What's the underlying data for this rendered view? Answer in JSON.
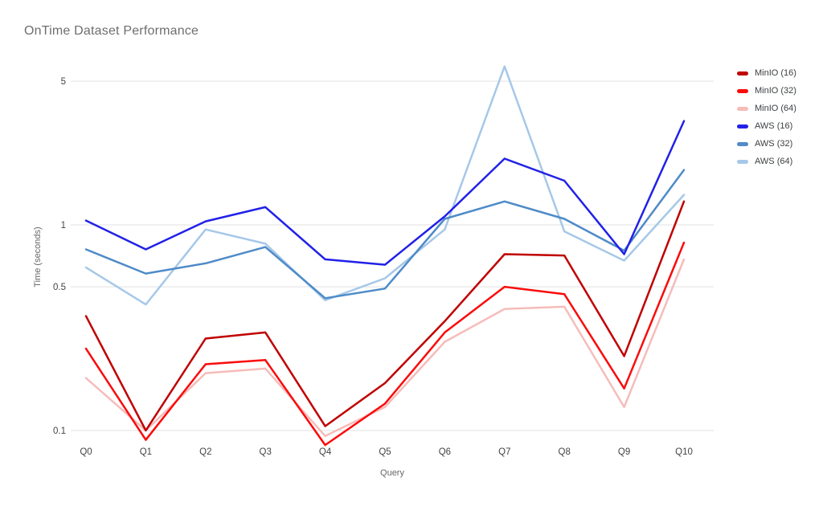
{
  "title": "OnTime Dataset Performance",
  "chart_data": {
    "type": "line",
    "title": "OnTime Dataset Performance",
    "xlabel": "Query",
    "ylabel": "Time (seconds)",
    "y_scale": "log",
    "grid": true,
    "legend_position": "right",
    "ylim": [
      0.08,
      6.5
    ],
    "y_ticks": [
      {
        "label": "5",
        "value": 5
      },
      {
        "label": "1",
        "value": 1
      },
      {
        "label": "0.5",
        "value": 0.5
      },
      {
        "label": "0.1",
        "value": 0.1
      }
    ],
    "categories": [
      "Q0",
      "Q1",
      "Q2",
      "Q3",
      "Q4",
      "Q5",
      "Q6",
      "Q7",
      "Q8",
      "Q9",
      "Q10"
    ],
    "series": [
      {
        "name": "MinIO (16)",
        "color": "#c00000",
        "values": [
          0.36,
          0.1,
          0.28,
          0.3,
          0.105,
          0.17,
          0.34,
          0.72,
          0.71,
          0.23,
          1.3
        ]
      },
      {
        "name": "MinIO (32)",
        "color": "#fb0b0b",
        "values": [
          0.25,
          0.09,
          0.21,
          0.22,
          0.085,
          0.135,
          0.3,
          0.5,
          0.46,
          0.16,
          0.82
        ]
      },
      {
        "name": "MinIO (64)",
        "color": "#f5bcba",
        "values": [
          0.18,
          0.1,
          0.19,
          0.2,
          0.094,
          0.13,
          0.27,
          0.39,
          0.4,
          0.13,
          0.68
        ]
      },
      {
        "name": "AWS (16)",
        "color": "#2121e8",
        "values": [
          1.05,
          0.76,
          1.04,
          1.22,
          0.68,
          0.64,
          1.1,
          2.1,
          1.64,
          0.72,
          3.2
        ]
      },
      {
        "name": "AWS (32)",
        "color": "#4e8bc8",
        "values": [
          0.76,
          0.58,
          0.65,
          0.78,
          0.44,
          0.49,
          1.07,
          1.3,
          1.07,
          0.75,
          1.85
        ]
      },
      {
        "name": "AWS (64)",
        "color": "#a6c8e8",
        "values": [
          0.62,
          0.41,
          0.95,
          0.81,
          0.43,
          0.55,
          0.95,
          5.9,
          0.93,
          0.67,
          1.4
        ]
      }
    ]
  }
}
